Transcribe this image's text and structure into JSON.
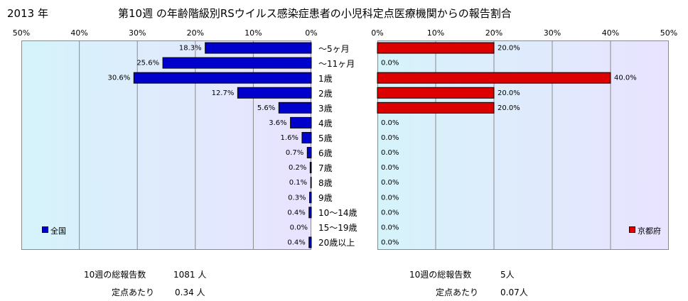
{
  "header": {
    "year": "2013 年",
    "title": "第10週 の年齢階級別RSウイルス感染症患者の小児科定点医療機関からの報告割合"
  },
  "left_axis_ticks": [
    "50%",
    "40%",
    "30%",
    "20%",
    "10%",
    "0%"
  ],
  "right_axis_ticks": [
    "0%",
    "10%",
    "20%",
    "30%",
    "40%",
    "50%"
  ],
  "categories": [
    "～5ヶ月",
    "～11ヶ月",
    "1歳",
    "2歳",
    "3歳",
    "4歳",
    "5歳",
    "6歳",
    "7歳",
    "8歳",
    "9歳",
    "10～14歳",
    "15～19歳",
    "20歳以上"
  ],
  "legend": {
    "left": "全国",
    "right": "京都府"
  },
  "colors": {
    "national": "#0000cc",
    "kyoto": "#dd0000",
    "grid": "#8a8a8a",
    "bar_outline": "#000000"
  },
  "footer": {
    "left": {
      "total_label": "10週の総報告数",
      "total_value": "1081 人",
      "per_label": "定点あたり",
      "per_value": "0.34 人"
    },
    "right": {
      "total_label": "10週の総報告数",
      "total_value": "5人",
      "per_label": "定点あたり",
      "per_value": "0.07人"
    }
  },
  "chart_data": [
    {
      "type": "bar",
      "orientation": "horizontal",
      "direction": "right-to-left",
      "categories": [
        "～5ヶ月",
        "～11ヶ月",
        "1歳",
        "2歳",
        "3歳",
        "4歳",
        "5歳",
        "6歳",
        "7歳",
        "8歳",
        "9歳",
        "10～14歳",
        "15～19歳",
        "20歳以上"
      ],
      "series": [
        {
          "name": "全国",
          "values": [
            18.3,
            25.6,
            30.6,
            12.7,
            5.6,
            3.6,
            1.6,
            0.7,
            0.2,
            0.1,
            0.3,
            0.4,
            0.0,
            0.4
          ],
          "labels": [
            "18.3%",
            "25.6%",
            "30.6%",
            "12.7%",
            "5.6%",
            "3.6%",
            "1.6%",
            "0.7%",
            "0.2%",
            "0.1%",
            "0.3%",
            "0.4%",
            "0.0%",
            "0.4%"
          ]
        }
      ],
      "xlim": [
        0,
        50
      ],
      "grid": true,
      "legend_position": "bottom-left"
    },
    {
      "type": "bar",
      "orientation": "horizontal",
      "direction": "left-to-right",
      "categories": [
        "～5ヶ月",
        "～11ヶ月",
        "1歳",
        "2歳",
        "3歳",
        "4歳",
        "5歳",
        "6歳",
        "7歳",
        "8歳",
        "9歳",
        "10～14歳",
        "15～19歳",
        "20歳以上"
      ],
      "series": [
        {
          "name": "京都府",
          "values": [
            20.0,
            0.0,
            40.0,
            20.0,
            20.0,
            0.0,
            0.0,
            0.0,
            0.0,
            0.0,
            0.0,
            0.0,
            0.0,
            0.0
          ],
          "labels": [
            "20.0%",
            "0.0%",
            "40.0%",
            "20.0%",
            "20.0%",
            "0.0%",
            "0.0%",
            "0.0%",
            "0.0%",
            "0.0%",
            "0.0%",
            "0.0%",
            "0.0%",
            "0.0%"
          ]
        }
      ],
      "xlim": [
        0,
        50
      ],
      "grid": true,
      "legend_position": "bottom-right"
    }
  ]
}
